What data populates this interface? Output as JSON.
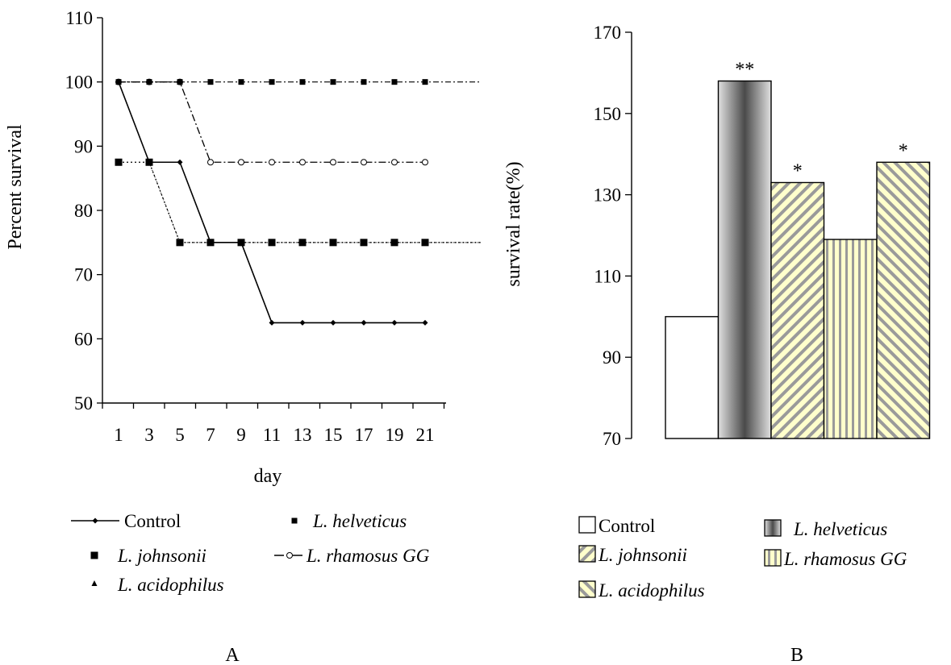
{
  "chart_data": [
    {
      "type": "line",
      "panel_label": "A",
      "xlabel": "day",
      "ylabel": "Percent survival",
      "x_ticks": [
        "1",
        "3",
        "5",
        "7",
        "9",
        "11",
        "13",
        "15",
        "17",
        "19",
        "21"
      ],
      "ylim": [
        50,
        110
      ],
      "y_ticks": [
        50,
        60,
        70,
        80,
        90,
        100,
        110
      ],
      "grid": false,
      "legend_position": "bottom",
      "series": [
        {
          "name": "Control",
          "x": [
            1,
            3,
            5,
            7,
            9,
            11,
            13,
            15,
            17,
            19,
            21
          ],
          "values": [
            100,
            87.5,
            87.5,
            75,
            75,
            62.5,
            62.5,
            62.5,
            62.5,
            62.5,
            62.5
          ],
          "marker": "diamond-small"
        },
        {
          "name": "L. helveticus",
          "x": [
            1,
            3,
            5,
            7,
            9,
            11,
            13,
            15,
            17,
            19,
            21
          ],
          "values": [
            100,
            100,
            100,
            100,
            100,
            100,
            100,
            100,
            100,
            100,
            100
          ],
          "marker": "square-small"
        },
        {
          "name": "L. johnsonii",
          "x": [
            1,
            3,
            5,
            7,
            9,
            11,
            13,
            15,
            17,
            19,
            21
          ],
          "values": [
            87.5,
            87.5,
            75,
            75,
            75,
            75,
            75,
            75,
            75,
            75,
            75
          ],
          "marker": "square"
        },
        {
          "name": "L. rhamosus GG",
          "x": [
            1,
            3,
            5,
            7,
            9,
            11,
            13,
            15,
            17,
            19,
            21
          ],
          "values": [
            100,
            100,
            100,
            87.5,
            87.5,
            87.5,
            87.5,
            87.5,
            87.5,
            87.5,
            87.5
          ],
          "marker": "open-circle"
        },
        {
          "name": "L. acidophilus",
          "x": [
            1,
            3,
            5,
            7,
            9,
            11,
            13,
            15,
            17,
            19,
            21
          ],
          "values": [
            100,
            87.5,
            75,
            75,
            75,
            75,
            75,
            75,
            75,
            75,
            75
          ],
          "marker": "triangle"
        }
      ]
    },
    {
      "type": "bar",
      "panel_label": "B",
      "xlabel": "",
      "ylabel": "survival rate(%)",
      "ylim": [
        70,
        170
      ],
      "y_ticks": [
        70,
        90,
        110,
        130,
        150,
        170
      ],
      "grid": false,
      "legend_position": "bottom",
      "categories": [
        "Control",
        "L. helveticus",
        "L. johnsonii",
        "L. rhamosus GG",
        "L. acidophilus"
      ],
      "values": [
        100,
        158,
        133,
        119,
        138
      ],
      "annotations": [
        "",
        "**",
        "*",
        "",
        "*"
      ]
    }
  ],
  "colors": {
    "axis": "#000000",
    "helveticus_dark": "#555555",
    "helveticus_light": "#d0d0d0",
    "pattern_bg": "#ffffcc",
    "pattern_fg": "#9a9a9a"
  }
}
